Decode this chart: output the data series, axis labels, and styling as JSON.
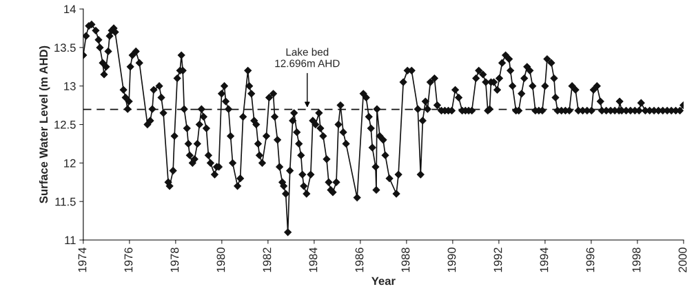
{
  "chart_data": {
    "type": "line",
    "xlabel": "Year",
    "ylabel": "Surface Water Level (m AHD)",
    "xlim": [
      1974,
      2000
    ],
    "xticks": [
      1974,
      1976,
      1978,
      1980,
      1982,
      1984,
      1986,
      1988,
      1990,
      1992,
      1994,
      1996,
      1998,
      2000
    ],
    "ylim": [
      11,
      14
    ],
    "yticks": [
      11,
      11.5,
      12,
      12.5,
      13,
      13.5,
      14
    ],
    "grid": false,
    "legend": false,
    "marker": "diamond",
    "line_style": "solid",
    "series": [
      {
        "color": "#111111",
        "x": [
          1974.0,
          1974.12,
          1974.24,
          1974.36,
          1974.54,
          1974.66,
          1974.72,
          1974.84,
          1974.9,
          1974.99,
          1975.08,
          1975.14,
          1975.23,
          1975.32,
          1975.38,
          1975.74,
          1975.83,
          1975.92,
          1975.98,
          1976.04,
          1976.13,
          1976.28,
          1976.43,
          1976.78,
          1976.9,
          1976.99,
          1977.05,
          1977.29,
          1977.38,
          1977.47,
          1977.68,
          1977.74,
          1977.89,
          1977.95,
          1978.07,
          1978.19,
          1978.25,
          1978.31,
          1978.37,
          1978.49,
          1978.55,
          1978.61,
          1978.73,
          1978.82,
          1978.94,
          1979.03,
          1979.12,
          1979.21,
          1979.33,
          1979.42,
          1979.51,
          1979.69,
          1979.78,
          1979.87,
          1979.99,
          1980.11,
          1980.17,
          1980.29,
          1980.38,
          1980.47,
          1980.68,
          1980.8,
          1980.92,
          1981.13,
          1981.19,
          1981.28,
          1981.4,
          1981.49,
          1981.57,
          1981.63,
          1981.75,
          1981.93,
          1982.05,
          1982.23,
          1982.29,
          1982.41,
          1982.5,
          1982.62,
          1982.68,
          1982.77,
          1982.86,
          1982.95,
          1983.07,
          1983.13,
          1983.25,
          1983.34,
          1983.43,
          1983.49,
          1983.55,
          1983.67,
          1983.85,
          1983.94,
          1984.06,
          1984.21,
          1984.27,
          1984.39,
          1984.54,
          1984.63,
          1984.72,
          1984.81,
          1984.96,
          1985.05,
          1985.14,
          1985.26,
          1985.38,
          1985.86,
          1986.13,
          1986.25,
          1986.37,
          1986.46,
          1986.52,
          1986.66,
          1986.69,
          1986.72,
          1986.84,
          1986.99,
          1987.08,
          1987.26,
          1987.56,
          1987.65,
          1987.86,
          1988.04,
          1988.22,
          1988.49,
          1988.61,
          1988.7,
          1988.82,
          1988.91,
          1989.03,
          1989.21,
          1989.33,
          1989.51,
          1989.66,
          1989.81,
          1989.96,
          1990.11,
          1990.26,
          1990.41,
          1990.55,
          1990.69,
          1990.83,
          1991.01,
          1991.13,
          1991.31,
          1991.43,
          1991.52,
          1991.6,
          1991.66,
          1991.78,
          1991.93,
          1992.02,
          1992.14,
          1992.29,
          1992.44,
          1992.5,
          1992.59,
          1992.74,
          1992.86,
          1992.98,
          1993.1,
          1993.22,
          1993.34,
          1993.46,
          1993.58,
          1993.73,
          1993.88,
          1994.0,
          1994.09,
          1994.27,
          1994.39,
          1994.45,
          1994.54,
          1994.71,
          1994.88,
          1995.05,
          1995.17,
          1995.32,
          1995.44,
          1995.63,
          1995.82,
          1996.01,
          1996.1,
          1996.25,
          1996.4,
          1996.46,
          1996.65,
          1996.84,
          1997.02,
          1997.2,
          1997.23,
          1997.32,
          1997.51,
          1997.7,
          1997.89,
          1998.07,
          1998.16,
          1998.34,
          1998.53,
          1998.72,
          1998.91,
          1999.1,
          1999.29,
          1999.47,
          1999.66,
          1999.84,
          1999.99
        ],
        "values": [
          13.4,
          13.65,
          13.78,
          13.8,
          13.72,
          13.6,
          13.5,
          13.3,
          13.15,
          13.25,
          13.45,
          13.65,
          13.72,
          13.75,
          13.7,
          12.95,
          12.85,
          12.7,
          12.8,
          13.25,
          13.4,
          13.45,
          13.3,
          12.5,
          12.55,
          12.7,
          12.95,
          13.0,
          12.85,
          12.65,
          11.75,
          11.7,
          11.9,
          12.35,
          13.1,
          13.2,
          13.4,
          13.2,
          12.7,
          12.45,
          12.25,
          12.1,
          12.0,
          12.05,
          12.25,
          12.5,
          12.7,
          12.6,
          12.45,
          12.1,
          12.0,
          11.85,
          11.95,
          11.95,
          12.9,
          13.0,
          12.8,
          12.7,
          12.35,
          12.0,
          11.7,
          11.8,
          12.6,
          13.2,
          13.0,
          12.9,
          12.55,
          12.5,
          12.25,
          12.1,
          12.0,
          12.35,
          12.85,
          12.9,
          12.6,
          12.3,
          11.95,
          11.75,
          11.7,
          11.6,
          11.1,
          11.9,
          12.55,
          12.65,
          12.4,
          12.25,
          12.1,
          11.85,
          11.7,
          11.6,
          11.85,
          12.55,
          12.5,
          12.65,
          12.45,
          12.35,
          12.05,
          11.75,
          11.65,
          11.62,
          11.75,
          12.5,
          12.75,
          12.4,
          12.25,
          11.55,
          12.9,
          12.85,
          12.6,
          12.45,
          12.2,
          11.95,
          11.65,
          12.7,
          12.35,
          12.3,
          12.1,
          11.8,
          11.6,
          11.85,
          13.05,
          13.2,
          13.2,
          12.7,
          11.85,
          12.55,
          12.8,
          12.7,
          13.05,
          13.1,
          12.75,
          12.68,
          12.68,
          12.68,
          12.68,
          12.95,
          12.85,
          12.68,
          12.68,
          12.68,
          12.68,
          13.1,
          13.2,
          13.15,
          13.05,
          12.68,
          12.7,
          13.05,
          13.05,
          12.95,
          13.1,
          13.3,
          13.4,
          13.35,
          13.2,
          13.0,
          12.68,
          12.68,
          12.9,
          13.1,
          13.25,
          13.2,
          13.0,
          12.68,
          12.68,
          12.68,
          13.0,
          13.35,
          13.3,
          13.1,
          12.85,
          12.68,
          12.68,
          12.68,
          12.68,
          13.0,
          12.95,
          12.68,
          12.68,
          12.68,
          12.68,
          12.95,
          13.0,
          12.8,
          12.68,
          12.68,
          12.68,
          12.68,
          12.68,
          12.8,
          12.68,
          12.68,
          12.68,
          12.68,
          12.68,
          12.78,
          12.68,
          12.68,
          12.68,
          12.68,
          12.68,
          12.68,
          12.68,
          12.68,
          12.68,
          12.75
        ]
      }
    ],
    "ref_lines": [
      {
        "axis": "y",
        "value": 12.696,
        "color": "#111111",
        "line_style": "dashed"
      }
    ],
    "annotations": [
      {
        "text": "Lake bed\n12.696m AHD",
        "x": 1983.7,
        "y": 12.696
      }
    ]
  }
}
